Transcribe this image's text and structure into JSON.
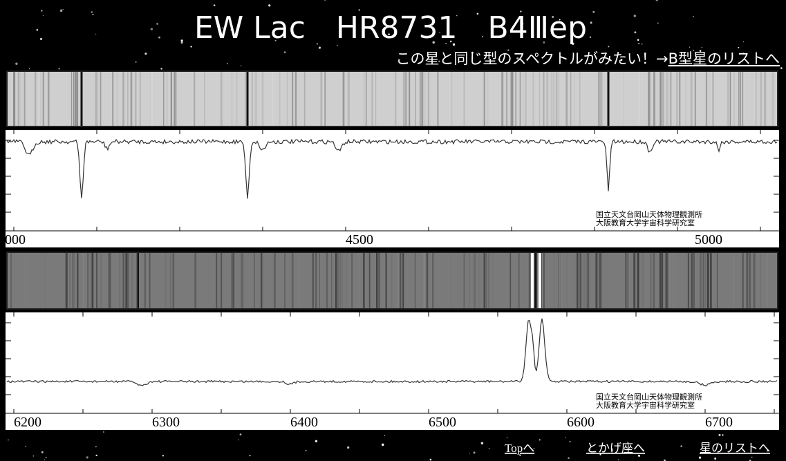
{
  "header": {
    "title": "EW Lac　HR8731　B4Ⅲep",
    "subtitle": "この星と同じ型のスペクトルがみたい！→",
    "subtitle_link": "B型星のリストへ"
  },
  "panels": [
    {
      "axis_labels": [
        "000",
        "4500",
        "5000"
      ],
      "credits": [
        "国立天文台岡山天体物理観測所",
        "大阪教育大学宇宙科学研究室"
      ]
    },
    {
      "axis_labels": [
        "6200",
        "6300",
        "6400",
        "6500",
        "6600",
        "6700"
      ],
      "credits": [
        "国立天文台岡山天体物理観測所",
        "大阪教育大学宇宙科学研究室"
      ]
    }
  ],
  "footer": {
    "links": [
      "Topへ",
      "とかげ座へ",
      "星のリストへ"
    ]
  }
}
